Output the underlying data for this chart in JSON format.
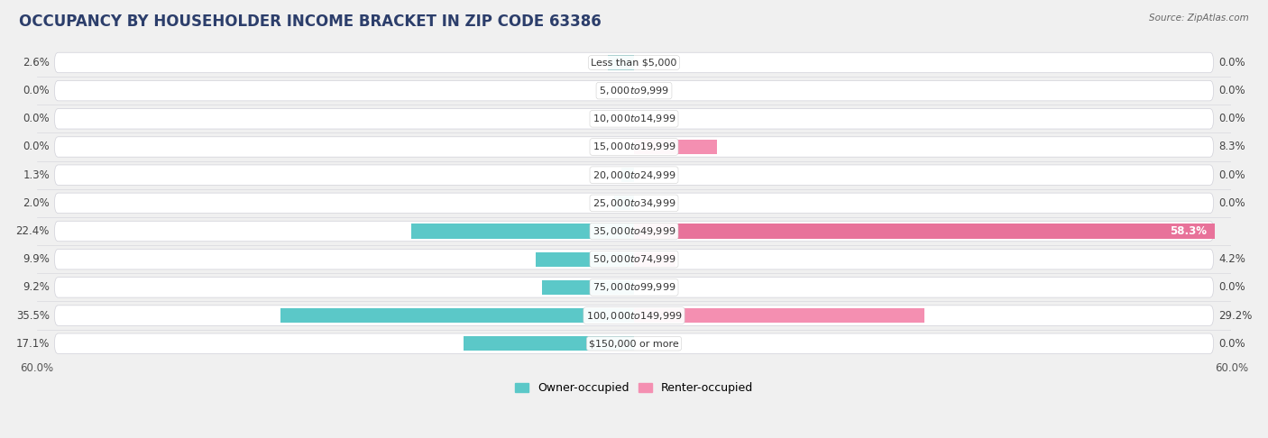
{
  "title": "OCCUPANCY BY HOUSEHOLDER INCOME BRACKET IN ZIP CODE 63386",
  "source": "Source: ZipAtlas.com",
  "categories": [
    "Less than $5,000",
    "$5,000 to $9,999",
    "$10,000 to $14,999",
    "$15,000 to $19,999",
    "$20,000 to $24,999",
    "$25,000 to $34,999",
    "$35,000 to $49,999",
    "$50,000 to $74,999",
    "$75,000 to $99,999",
    "$100,000 to $149,999",
    "$150,000 or more"
  ],
  "owner_values": [
    2.6,
    0.0,
    0.0,
    0.0,
    1.3,
    2.0,
    22.4,
    9.9,
    9.2,
    35.5,
    17.1
  ],
  "renter_values": [
    0.0,
    0.0,
    0.0,
    8.3,
    0.0,
    0.0,
    58.3,
    4.2,
    0.0,
    29.2,
    0.0
  ],
  "owner_color": "#5bc8c8",
  "renter_color": "#f48fb1",
  "renter_color_bright": "#e8729a",
  "bar_height": 0.52,
  "max_value": 60.0,
  "bg_color": "#f0f0f0",
  "row_bg_color": "#e8e8ec",
  "pill_color": "#ffffff",
  "title_fontsize": 12,
  "label_fontsize": 8.5,
  "axis_label_fontsize": 8.5,
  "legend_fontsize": 9
}
